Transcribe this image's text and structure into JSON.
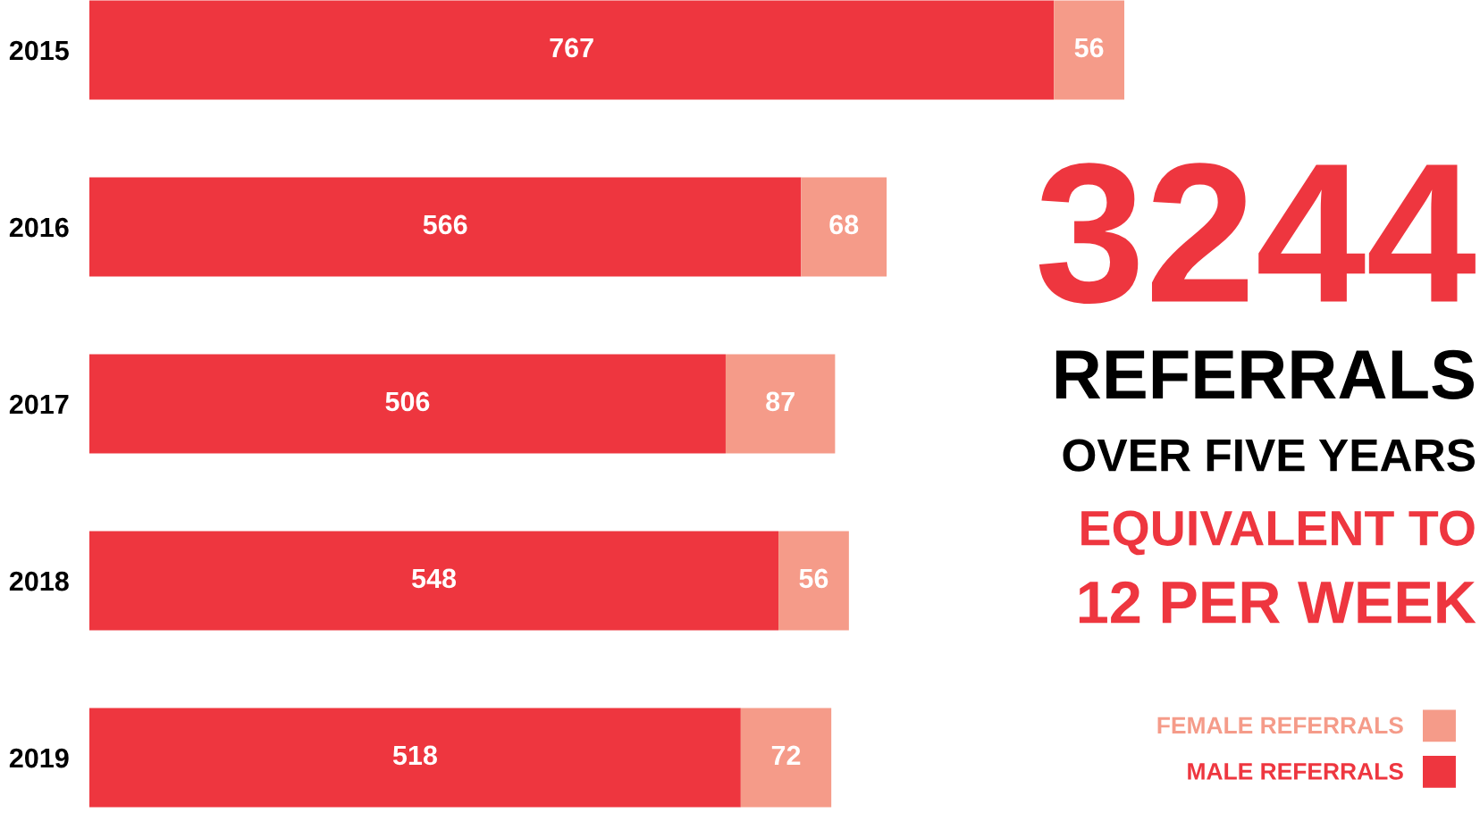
{
  "chart_data": {
    "type": "bar",
    "orientation": "horizontal",
    "stacked": true,
    "data_labels": true,
    "legend": "bottom right",
    "grid": false,
    "categories": [
      "2015",
      "2016",
      "2017",
      "2018",
      "2019"
    ],
    "series": [
      {
        "name": "MALE REFERRALS",
        "color": "#ee363f",
        "values": [
          767,
          566,
          506,
          548,
          518
        ]
      },
      {
        "name": "FEMALE REFERRALS",
        "color": "#f59b89",
        "values": [
          56,
          68,
          87,
          56,
          72
        ]
      }
    ],
    "annotations": [
      "3244",
      "REFERRALS",
      "OVER FIVE YEARS",
      "EQUIVALENT TO",
      "12 PER WEEK"
    ]
  }
}
